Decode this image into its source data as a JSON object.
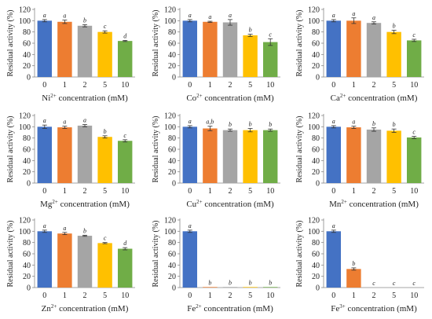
{
  "colors": [
    "#4472c4",
    "#ed7d31",
    "#a5a5a5",
    "#ffc000",
    "#70ad47"
  ],
  "chart_data": [
    {
      "type": "bar",
      "categories": [
        "0",
        "1",
        "2",
        "5",
        "10"
      ],
      "values": [
        100,
        98,
        91,
        80,
        64
      ],
      "errors": [
        2,
        3,
        2,
        2,
        1
      ],
      "labels": [
        "a",
        "a",
        "b",
        "c",
        "d"
      ],
      "ion": "Ni",
      "charge": "2+",
      "xlabel_suffix": " concentration (mM)",
      "ylabel": "Residual activity (%)",
      "ylim": [
        0,
        120
      ],
      "yticks": [
        0,
        20,
        40,
        60,
        80,
        100,
        120
      ]
    },
    {
      "type": "bar",
      "categories": [
        "0",
        "1",
        "2",
        "5",
        "10"
      ],
      "values": [
        100,
        98,
        97,
        74,
        62
      ],
      "errors": [
        2,
        1,
        5,
        2,
        6
      ],
      "labels": [
        "a",
        "a",
        "a",
        "b",
        "c"
      ],
      "ion": "Co",
      "charge": "2+",
      "xlabel_suffix": " concentration (mM)",
      "ylabel": "Residual activity (%)",
      "ylim": [
        0,
        120
      ],
      "yticks": [
        0,
        20,
        40,
        60,
        80,
        100,
        120
      ]
    },
    {
      "type": "bar",
      "categories": [
        "0",
        "1",
        "2",
        "5",
        "10"
      ],
      "values": [
        100,
        100,
        96,
        80,
        65
      ],
      "errors": [
        2,
        5,
        2,
        3,
        2
      ],
      "labels": [
        "a",
        "a",
        "a",
        "b",
        "c"
      ],
      "ion": "Ca",
      "charge": "2+",
      "xlabel_suffix": " concentration (mM)",
      "ylabel": "Residual activity (%)",
      "ylim": [
        0,
        120
      ],
      "yticks": [
        0,
        20,
        40,
        60,
        80,
        100,
        120
      ]
    },
    {
      "type": "bar",
      "categories": [
        "0",
        "1",
        "2",
        "5",
        "10"
      ],
      "values": [
        100,
        99,
        102,
        82,
        75
      ],
      "errors": [
        3,
        2,
        2,
        2,
        2
      ],
      "labels": [
        "a",
        "a",
        "a",
        "b",
        "c"
      ],
      "ion": "Mg",
      "charge": "2+",
      "xlabel_suffix": " concentration (mM)",
      "ylabel": "Residual activity (%)",
      "ylim": [
        0,
        120
      ],
      "yticks": [
        0,
        20,
        40,
        60,
        80,
        100,
        120
      ]
    },
    {
      "type": "bar",
      "categories": [
        "0",
        "1",
        "2",
        "5",
        "10"
      ],
      "values": [
        100,
        97,
        94,
        94,
        94
      ],
      "errors": [
        2,
        4,
        2,
        3,
        2
      ],
      "labels": [
        "a",
        "a,b",
        "b",
        "b",
        "b"
      ],
      "ion": "Cu",
      "charge": "2+",
      "xlabel_suffix": " concentration (mM)",
      "ylabel": "Residual activity (%)",
      "ylim": [
        0,
        120
      ],
      "yticks": [
        0,
        20,
        40,
        60,
        80,
        100,
        120
      ]
    },
    {
      "type": "bar",
      "categories": [
        "0",
        "1",
        "2",
        "5",
        "10"
      ],
      "values": [
        100,
        99,
        95,
        93,
        81
      ],
      "errors": [
        2,
        2,
        3,
        3,
        2
      ],
      "labels": [
        "a",
        "a",
        "b",
        "b",
        "c"
      ],
      "ion": "Mn",
      "charge": "2+",
      "xlabel_suffix": " concentration (mM)",
      "ylabel": "Residual activity (%)",
      "ylim": [
        0,
        120
      ],
      "yticks": [
        0,
        20,
        40,
        60,
        80,
        100,
        120
      ]
    },
    {
      "type": "bar",
      "categories": [
        "0",
        "1",
        "2",
        "5",
        "10"
      ],
      "values": [
        100,
        96,
        92,
        79,
        69
      ],
      "errors": [
        2,
        2,
        1,
        1,
        2
      ],
      "labels": [
        "a",
        "a",
        "b",
        "c",
        "d"
      ],
      "ion": "Zn",
      "charge": "2+",
      "xlabel_suffix": " concentration (mM)",
      "ylabel": "Residual activity (%)",
      "ylim": [
        0,
        120
      ],
      "yticks": [
        0,
        20,
        40,
        60,
        80,
        100,
        120
      ]
    },
    {
      "type": "bar",
      "categories": [
        "0",
        "1",
        "2",
        "5",
        "10"
      ],
      "values": [
        100,
        1,
        1,
        1,
        1
      ],
      "errors": [
        2,
        0,
        0,
        0,
        0
      ],
      "labels": [
        "a",
        "b",
        "b",
        "b",
        "b"
      ],
      "ion": "Fe",
      "charge": "2+",
      "xlabel_suffix": " concentration (mM)",
      "ylabel": "Residual activity (%)",
      "ylim": [
        0,
        120
      ],
      "yticks": [
        0,
        20,
        40,
        60,
        80,
        100,
        120
      ]
    },
    {
      "type": "bar",
      "categories": [
        "0",
        "1",
        "2",
        "5",
        "10"
      ],
      "values": [
        100,
        33,
        0,
        0,
        0
      ],
      "errors": [
        2,
        2,
        0,
        0,
        0
      ],
      "labels": [
        "a",
        "b",
        "c",
        "c",
        "c"
      ],
      "ion": "Fe",
      "charge": "3+",
      "xlabel_suffix": " concentration (mM)",
      "ylabel": "Residual activity (%)",
      "ylim": [
        0,
        120
      ],
      "yticks": [
        0,
        20,
        40,
        60,
        80,
        100,
        120
      ]
    }
  ]
}
